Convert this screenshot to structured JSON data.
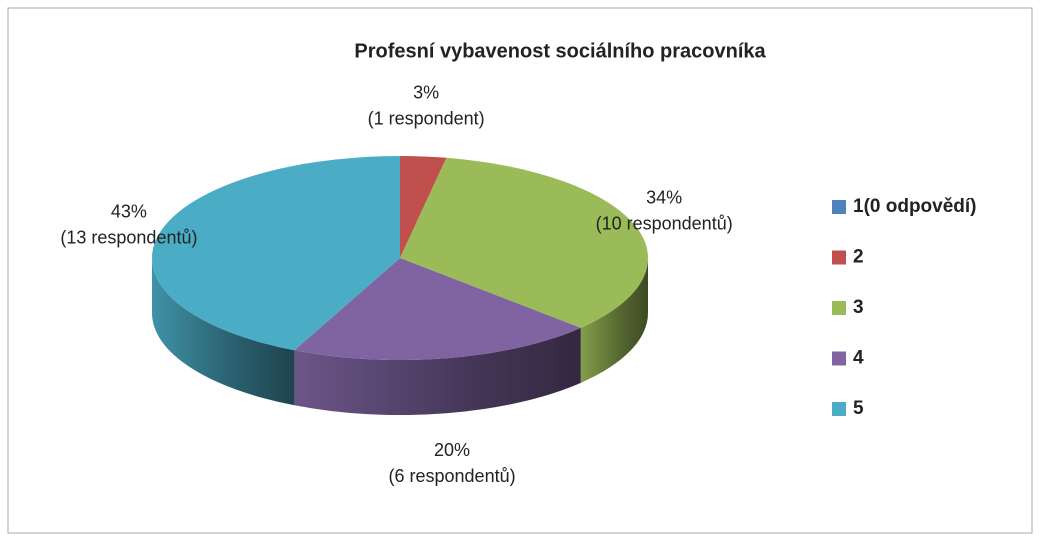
{
  "chart_data": {
    "type": "pie3d",
    "title": "Profesní vybavenost sociálního pracovníka",
    "categories": [
      "1(0 odpovědí)",
      "2",
      "3",
      "4",
      "5"
    ],
    "values": [
      0,
      3,
      34,
      20,
      43
    ],
    "value_labels": [
      null,
      "3%",
      "34%",
      "20%",
      "43%"
    ],
    "value_notes": [
      null,
      "(1 respondent)",
      "(10 respondentů)",
      "(6 respondentů)",
      "(13 respondentů)"
    ],
    "colors": [
      "#4f81bd",
      "#c0504d",
      "#9bbb59",
      "#8064a2",
      "#4bacc6"
    ],
    "legend": "right"
  }
}
